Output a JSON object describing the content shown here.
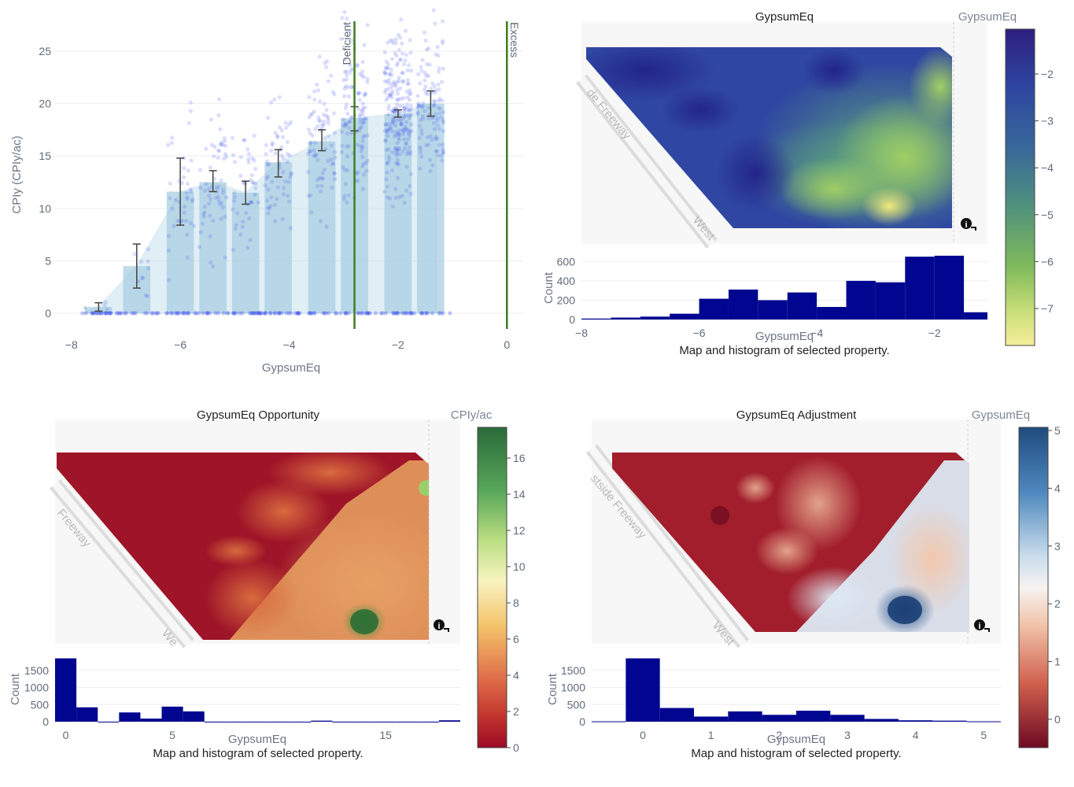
{
  "scatter_panel": {
    "xlabel": "GypsumEq",
    "ylabel": "CPIy (CPIy/ac)",
    "xticks": [
      "−8",
      "−6",
      "−4",
      "−2",
      "0"
    ],
    "yticks": [
      "0",
      "5",
      "10",
      "15",
      "20",
      "25"
    ],
    "deficient_label": "Deficient",
    "excess_label": "Excess"
  },
  "gypsum_map": {
    "title": "GypsumEq",
    "colorbar_title": "GypsumEq",
    "colorbar_ticks": [
      "−2",
      "−3",
      "−4",
      "−5",
      "−6",
      "−7"
    ],
    "road_labels": [
      "de Freeway",
      "West"
    ],
    "hist_ylabel": "Count",
    "hist_yticks": [
      "0",
      "200",
      "400",
      "600"
    ],
    "hist_xticks": [
      "−8",
      "−6",
      "−4",
      "−2"
    ],
    "hist_xlabel": "GypsumEq",
    "caption": "Map and histogram of selected property."
  },
  "opportunity_map": {
    "title": "GypsumEq Opportunity",
    "colorbar_title": "CPIy/ac",
    "colorbar_ticks": [
      "16",
      "14",
      "12",
      "10",
      "8",
      "6",
      "4",
      "2",
      "0"
    ],
    "road_labels": [
      "Freeway",
      "We"
    ],
    "hist_ylabel": "Count",
    "hist_yticks": [
      "0",
      "500",
      "1000",
      "1500"
    ],
    "hist_xticks": [
      "0",
      "5",
      "15"
    ],
    "hist_xlabel": "GypsumEq",
    "caption": "Map and histogram of selected property."
  },
  "adjustment_map": {
    "title": "GypsumEq Adjustment",
    "colorbar_title": "GypsumEq",
    "colorbar_ticks": [
      "5",
      "4",
      "3",
      "2",
      "1",
      "0"
    ],
    "road_labels": [
      "stside Freeway",
      "West"
    ],
    "hist_ylabel": "Count",
    "hist_yticks": [
      "0",
      "500",
      "1000",
      "1500"
    ],
    "hist_xticks": [
      "0",
      "1",
      "2",
      "3",
      "4",
      "5"
    ],
    "hist_xlabel": "GypsumEq",
    "caption": "Map and histogram of selected property."
  },
  "chart_data": [
    {
      "type": "bar",
      "xlabel": "GypsumEq",
      "ylabel": "CPIy (CPIy/ac)",
      "xlim": [
        -8.3,
        0.3
      ],
      "ylim": [
        -1.5,
        28
      ],
      "x": [
        -7.5,
        -6.8,
        -6.0,
        -5.4,
        -4.8,
        -4.2,
        -3.4,
        -2.8,
        -2.0,
        -1.4
      ],
      "values": [
        0.6,
        4.5,
        11.6,
        12.5,
        11.5,
        14.4,
        16.4,
        18.6,
        19.0,
        20.0
      ],
      "error_low": [
        0.2,
        2.4,
        8.4,
        11.6,
        10.4,
        13.0,
        15.5,
        17.4,
        18.7,
        18.8
      ],
      "error_high": [
        1.0,
        6.6,
        14.8,
        13.6,
        12.6,
        15.6,
        17.5,
        19.7,
        19.4,
        21.2
      ],
      "vlines": [
        {
          "x": -2.8,
          "label": "Deficient"
        },
        {
          "x": 0,
          "label": "Excess"
        }
      ],
      "grid": true
    },
    {
      "type": "bar",
      "title": "GypsumEq",
      "xlabel": "GypsumEq",
      "ylabel": "Count",
      "xlim": [
        -8,
        -1.1
      ],
      "ylim": [
        0,
        700
      ],
      "bin_edges": [
        -8.0,
        -7.5,
        -7.0,
        -6.5,
        -6.0,
        -5.5,
        -5.0,
        -4.5,
        -4.0,
        -3.5,
        -3.0,
        -2.5,
        -2.0,
        -1.5,
        -1.1
      ],
      "values": [
        10,
        20,
        30,
        60,
        215,
        310,
        200,
        280,
        130,
        400,
        385,
        650,
        660,
        75
      ]
    },
    {
      "type": "bar",
      "title": "GypsumEq Opportunity",
      "xlabel": "GypsumEq",
      "ylabel": "Count",
      "xlim": [
        -0.5,
        18.5
      ],
      "ylim": [
        0,
        2000
      ],
      "bin_edges": [
        -0.5,
        0.5,
        1.5,
        2.5,
        3.5,
        4.5,
        5.5,
        6.5,
        7.5,
        8.5,
        9.5,
        10.5,
        11.5,
        12.5,
        13.5,
        14.5,
        15.5,
        16.5,
        17.5,
        18.5
      ],
      "values": [
        1850,
        420,
        0,
        270,
        90,
        440,
        300,
        0,
        0,
        0,
        0,
        0,
        30,
        0,
        0,
        0,
        0,
        0,
        40
      ]
    },
    {
      "type": "bar",
      "title": "GypsumEq Adjustment",
      "xlabel": "GypsumEq",
      "ylabel": "Count",
      "xlim": [
        -0.75,
        5.25
      ],
      "ylim": [
        0,
        2000
      ],
      "bin_edges": [
        -0.75,
        -0.25,
        0.25,
        0.75,
        1.25,
        1.75,
        2.25,
        2.75,
        3.25,
        3.75,
        4.25,
        4.75,
        5.25
      ],
      "values": [
        10,
        1850,
        400,
        150,
        300,
        200,
        320,
        200,
        80,
        40,
        30,
        10
      ]
    }
  ]
}
